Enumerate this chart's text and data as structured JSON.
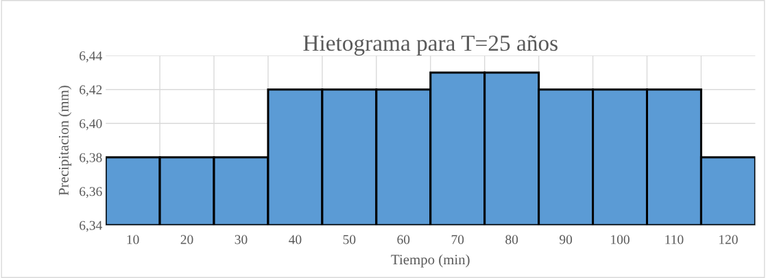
{
  "chart_data": {
    "type": "bar",
    "title": "Hietograma para T=25 años",
    "xlabel": "Tiempo (min)",
    "ylabel": "Precipitacion (mm)",
    "categories": [
      "10",
      "20",
      "30",
      "40",
      "50",
      "60",
      "70",
      "80",
      "90",
      "100",
      "110",
      "120"
    ],
    "values": [
      6.38,
      6.38,
      6.38,
      6.42,
      6.42,
      6.42,
      6.43,
      6.43,
      6.42,
      6.42,
      6.42,
      6.38
    ],
    "color": "#5b9bd5",
    "ylim": [
      6.34,
      6.44
    ],
    "yticks": [
      {
        "value": 6.34,
        "label": "6,34"
      },
      {
        "value": 6.36,
        "label": "6,36"
      },
      {
        "value": 6.38,
        "label": "6,38"
      },
      {
        "value": 6.4,
        "label": "6,40"
      },
      {
        "value": 6.42,
        "label": "6,42"
      },
      {
        "value": 6.44,
        "label": "6,44"
      }
    ],
    "grid": true
  }
}
